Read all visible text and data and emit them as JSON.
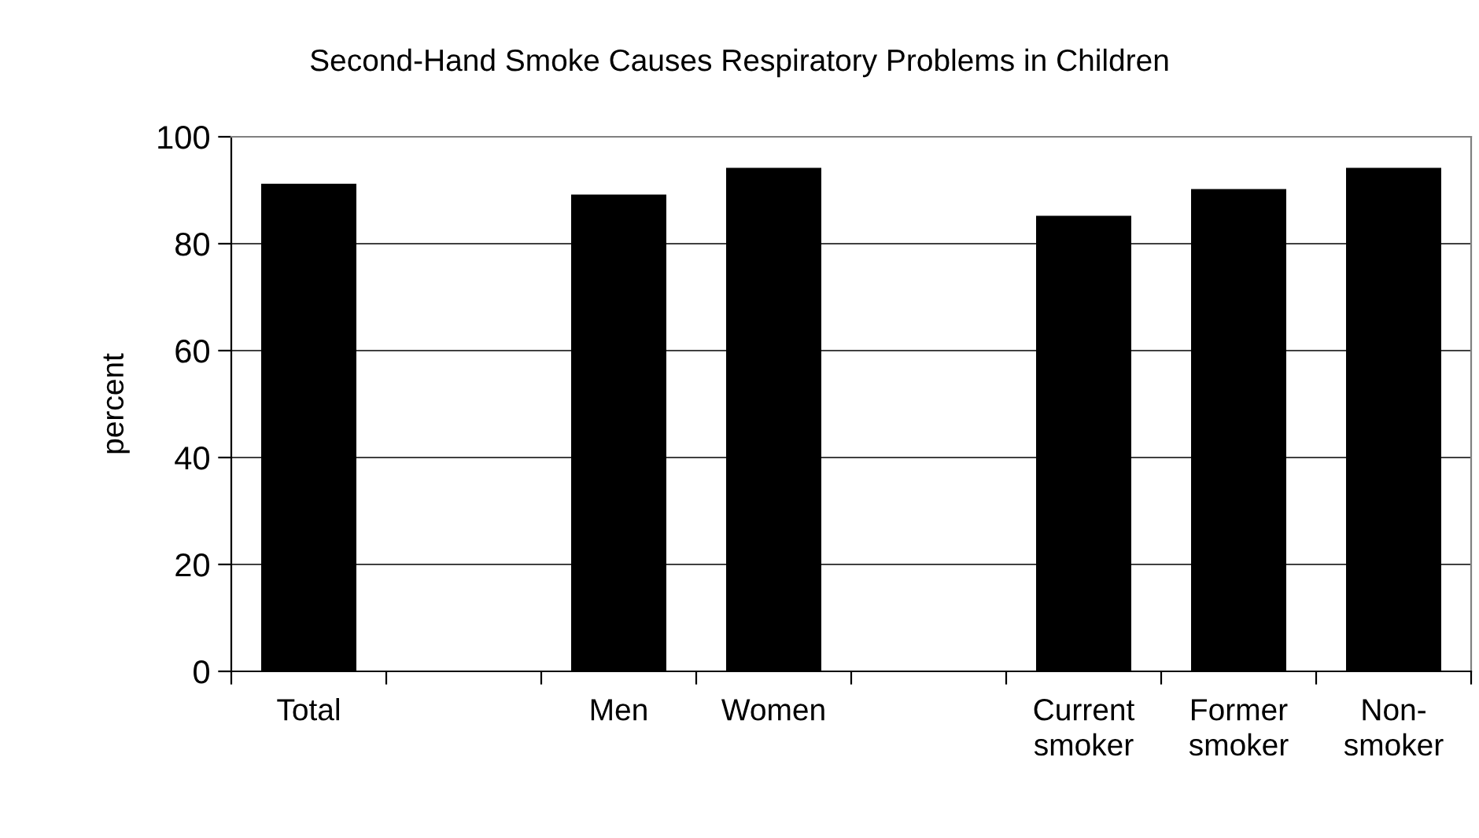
{
  "chart_data": {
    "type": "bar",
    "title": "Second-Hand Smoke Causes Respiratory Problems in Children",
    "ylabel": "percent",
    "categories": [
      "Total",
      null,
      "Men",
      "Women",
      null,
      "Current\nsmoker",
      "Former\nsmoker",
      "Non-\nsmoker"
    ],
    "values": [
      91,
      null,
      89,
      94,
      null,
      85,
      90,
      94
    ],
    "color": "#000000",
    "ylim": [
      0,
      100
    ],
    "yticks": [
      0,
      20,
      40,
      60,
      80,
      100
    ],
    "grid": "y",
    "legend": false
  }
}
